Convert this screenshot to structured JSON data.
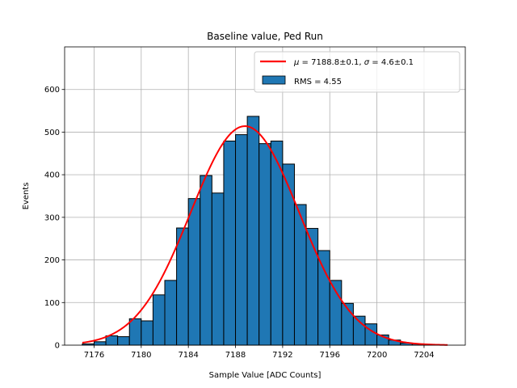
{
  "chart_data": {
    "type": "histogram",
    "title": "Baseline value, Ped Run",
    "xlabel": "Sample Value [ADC Counts]",
    "ylabel": "Events",
    "xlim": [
      7173.5,
      7207.5
    ],
    "ylim": [
      0,
      700
    ],
    "x_ticks": [
      7176,
      7180,
      7184,
      7188,
      7192,
      7196,
      7200,
      7204
    ],
    "y_ticks": [
      0,
      100,
      200,
      300,
      400,
      500,
      600
    ],
    "grid": true,
    "legend_position": "top-right",
    "bin_edges": [
      7175,
      7176,
      7177,
      7178,
      7179,
      7180,
      7181,
      7182,
      7183,
      7184,
      7185,
      7186,
      7187,
      7188,
      7189,
      7190,
      7191,
      7192,
      7193,
      7194,
      7195,
      7196,
      7197,
      7198,
      7199,
      7200,
      7201,
      7202,
      7203,
      7204,
      7205,
      7206
    ],
    "counts": [
      3,
      8,
      22,
      20,
      62,
      57,
      118,
      152,
      275,
      344,
      398,
      357,
      479,
      494,
      537,
      473,
      479,
      425,
      330,
      274,
      222,
      152,
      98,
      68,
      50,
      24,
      12,
      5,
      3,
      1,
      0
    ],
    "series": [
      {
        "kind": "histogram",
        "name": "RMS = 4.55",
        "color": "#1f77b4",
        "edge_color": "#000000"
      },
      {
        "kind": "gaussian_fit",
        "mu_symbol": "μ",
        "sigma_symbol": "σ",
        "mu_text": " = 7188.8±0.1, ",
        "sigma_text": " = 4.6±0.1",
        "mu": 7188.8,
        "sigma": 4.6,
        "amplitude": 514,
        "x_range": [
          7175,
          7206
        ],
        "color": "#ff0000"
      }
    ]
  }
}
